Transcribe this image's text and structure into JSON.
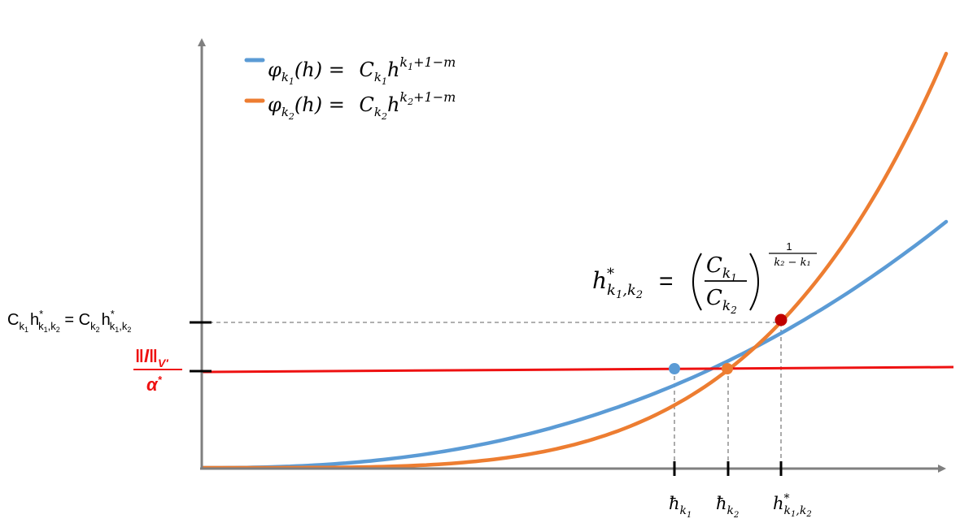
{
  "colors": {
    "axis": "#7f7f7f",
    "phi1": "#5b9bd5",
    "phi2": "#ed7d31",
    "level": "#ee1111",
    "intersection": "#c00000",
    "guide": "#808080",
    "text": "#000000"
  },
  "legend": {
    "items": [
      {
        "series": "phi1",
        "lhs": "φ",
        "lhs_sub": "k",
        "lhs_subsub": "1",
        "arg": "(h) = ",
        "coef": "C",
        "coef_sub": "k",
        "coef_subsub": "1",
        "base": "h",
        "exp": "k",
        "exp_sub": "1",
        "exp_tail": "+1−m"
      },
      {
        "series": "phi2",
        "lhs": "φ",
        "lhs_sub": "k",
        "lhs_subsub": "2",
        "arg": "(h) = ",
        "coef": "C",
        "coef_sub": "k",
        "coef_subsub": "2",
        "base": "h",
        "exp": "k",
        "exp_sub": "2",
        "exp_tail": "+1−m"
      }
    ]
  },
  "y_labels": {
    "equality": {
      "c1": "C",
      "c1_sub": "k",
      "c1_subsub": "1",
      "h1": "h",
      "h1_sup": "*",
      "h1_sub": "k",
      "h1_sub1": "1",
      "h1_sub_rest": ",k",
      "h1_sub2": "2",
      "eq": " = ",
      "c2": "C",
      "c2_sub": "k",
      "c2_subsub": "2",
      "h2": "h",
      "h2_sup": "*",
      "h2_sub": "k",
      "h2_sub1": "1",
      "h2_sub_rest": ",k",
      "h2_sub2": "2"
    },
    "level": {
      "numerator": "‖l‖",
      "numerator_sub": "V′",
      "denominator": "α",
      "denominator_sup": "*"
    }
  },
  "x_labels": {
    "hbar1": {
      "base": "ħ",
      "sub": "k",
      "subsub": "1"
    },
    "hbar2": {
      "base": "ħ",
      "sub": "k",
      "subsub": "2"
    },
    "hstar": {
      "base": "h",
      "sup": "*",
      "sub": "k",
      "sub1": "1",
      "sub_rest": ",k",
      "sub2": "2"
    }
  },
  "formula": {
    "lhs": "h",
    "lhs_sup": "*",
    "lhs_sub": "k",
    "lhs_sub1": "1",
    "lhs_sub_rest": ",k",
    "lhs_sub2": "2",
    "eq": "=",
    "num": "C",
    "num_sub": "k",
    "num_subsub": "1",
    "den": "C",
    "den_sub": "k",
    "den_subsub": "2",
    "exp_num": "1",
    "exp_den": "k₂ − k₁"
  }
}
